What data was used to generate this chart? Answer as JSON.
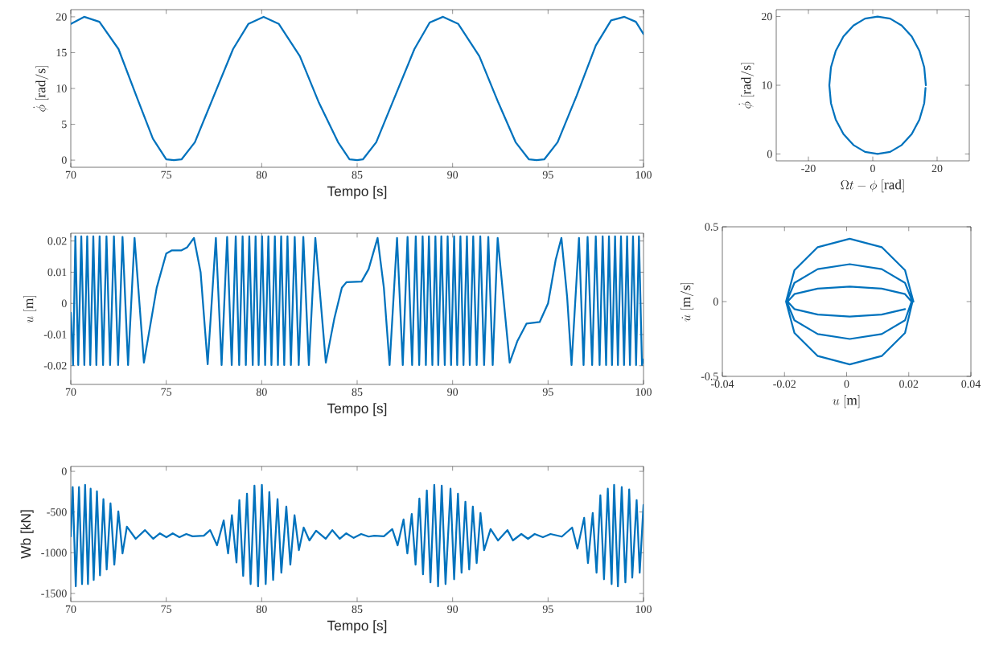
{
  "chart_data": [
    {
      "type": "line",
      "xlabel": "Tempo [s]",
      "ylabel": "\\dot{\\phi}\\ \\mathrm{[rad/s]}",
      "color": "#0072bd",
      "xlim": [
        70,
        100
      ],
      "ylim": [
        -1,
        21
      ],
      "xticks": [
        70,
        75,
        80,
        85,
        90,
        95,
        100
      ],
      "yticks": [
        0,
        5,
        10,
        15,
        20
      ],
      "x": [
        70,
        70.7,
        71.5,
        72.5,
        73.5,
        74.3,
        75,
        75.4,
        75.8,
        76.5,
        77.5,
        78.5,
        79.3,
        80.1,
        80.9,
        82,
        83,
        84,
        84.6,
        85,
        85.3,
        86,
        87,
        88,
        88.8,
        89.5,
        90.3,
        91.4,
        92.4,
        93.3,
        94,
        94.4,
        94.8,
        95.5,
        96.5,
        97.5,
        98.3,
        99,
        99.6,
        100
      ],
      "values": [
        19,
        20,
        19.3,
        15.5,
        8.5,
        3,
        0.1,
        0,
        0.1,
        2.5,
        9,
        15.5,
        19,
        20,
        19,
        14.5,
        8,
        2.5,
        0.1,
        0,
        0.1,
        2.5,
        9,
        15.5,
        19.2,
        20,
        19,
        14.5,
        8,
        2.5,
        0.1,
        0,
        0.1,
        2.5,
        9,
        16,
        19.5,
        20,
        19.3,
        17.6
      ]
    },
    {
      "type": "line",
      "xlabel": "\\Omega t-\\phi\\ \\mathrm{[rad]}",
      "ylabel": "\\dot{\\phi}\\ \\mathrm{[rad/s]}",
      "color": "#0072bd",
      "xlim": [
        -30,
        30
      ],
      "ylim": [
        -1,
        21
      ],
      "xticks": [
        -20,
        0,
        20
      ],
      "yticks": [
        0,
        10,
        20
      ],
      "x": [
        16.5,
        16,
        14.5,
        12.1,
        9,
        5.4,
        1.5,
        -2.4,
        -6,
        -9.1,
        -11.5,
        -13,
        -13.5,
        -13,
        -11.5,
        -9.1,
        -6,
        -2.4,
        1.5,
        5.4,
        9,
        12.1,
        14.5,
        16,
        16.4
      ],
      "values": [
        10,
        12.6,
        15,
        17.1,
        18.7,
        19.7,
        20,
        19.7,
        18.7,
        17.1,
        15,
        12.6,
        10,
        7.4,
        5,
        2.9,
        1.3,
        0.3,
        0,
        0.3,
        1.3,
        2.9,
        5,
        7.4,
        9.6
      ]
    },
    {
      "type": "line",
      "xlabel": "Tempo [s]",
      "ylabel": "u\\ \\mathrm{[m]}",
      "color": "#0072bd",
      "xlim": [
        70,
        100
      ],
      "ylim": [
        -0.026,
        0.0225
      ],
      "xticks": [
        70,
        75,
        80,
        85,
        90,
        95,
        100
      ],
      "yticks": [
        -0.02,
        -0.01,
        0,
        0.01,
        0.02
      ],
      "x": [
        70,
        70.12,
        70.24,
        70.39,
        70.55,
        70.71,
        70.86,
        71.02,
        71.18,
        71.34,
        71.51,
        71.69,
        71.87,
        72.06,
        72.26,
        72.48,
        72.71,
        73.0,
        73.34,
        73.83,
        74.5,
        75.0,
        75.3,
        75.8,
        76.1,
        76.45,
        76.8,
        77.17,
        77.6,
        77.9,
        78.19,
        78.43,
        78.64,
        78.82,
        79.0,
        79.17,
        79.35,
        79.53,
        79.68,
        79.84,
        80.02,
        80.18,
        80.35,
        80.51,
        80.69,
        80.85,
        81.02,
        81.18,
        81.35,
        81.53,
        81.73,
        81.94,
        82.18,
        82.47,
        82.81,
        83.36,
        83.8,
        84.2,
        84.44,
        85.23,
        85.6,
        86.07,
        86.4,
        86.7,
        87.09,
        87.39,
        87.64,
        87.88,
        88.07,
        88.25,
        88.43,
        88.6,
        88.76,
        88.94,
        89.1,
        89.25,
        89.41,
        89.59,
        89.74,
        89.92,
        90.08,
        90.24,
        90.41,
        90.57,
        90.75,
        90.9,
        91.08,
        91.26,
        91.45,
        91.65,
        91.87,
        92.1,
        92.36,
        92.99,
        93.4,
        93.87,
        94.56,
        95.0,
        95.4,
        95.7,
        96.0,
        96.23,
        96.62,
        96.86,
        97.07,
        97.31,
        97.5,
        97.7,
        97.86,
        98.04,
        98.19,
        98.35,
        98.51,
        98.66,
        98.82,
        98.98,
        99.14,
        99.29,
        99.45,
        99.61,
        99.76,
        99.92,
        100
      ],
      "values": [
        -0.003,
        -0.0198,
        0.0215,
        -0.0198,
        0.0215,
        -0.0198,
        0.0215,
        -0.0198,
        0.0215,
        -0.0198,
        0.0215,
        -0.0198,
        0.0215,
        -0.0198,
        0.0215,
        -0.0198,
        0.0213,
        -0.0198,
        0.021,
        -0.019,
        0.005,
        0.016,
        0.017,
        0.017,
        0.018,
        0.021,
        0.01,
        -0.0195,
        0.021,
        -0.0198,
        0.0213,
        -0.0198,
        0.0215,
        -0.0198,
        0.0215,
        -0.0198,
        0.0215,
        -0.0198,
        0.0215,
        -0.0198,
        0.0215,
        -0.0198,
        0.0215,
        -0.0198,
        0.0215,
        -0.0198,
        0.0215,
        -0.0198,
        0.0215,
        -0.0198,
        0.0213,
        -0.0198,
        0.0213,
        -0.0198,
        0.021,
        -0.019,
        -0.005,
        0.005,
        0.0068,
        0.007,
        0.011,
        0.021,
        0.005,
        -0.0198,
        0.021,
        -0.0198,
        0.0213,
        -0.0198,
        0.0215,
        -0.0198,
        0.0215,
        -0.0198,
        0.0215,
        -0.0198,
        0.0215,
        -0.0198,
        0.0215,
        -0.0198,
        0.0215,
        -0.0198,
        0.0215,
        -0.0198,
        0.0215,
        -0.0198,
        0.0215,
        -0.0198,
        0.0215,
        -0.0198,
        0.0215,
        -0.0198,
        0.0213,
        -0.0198,
        0.021,
        -0.019,
        -0.012,
        -0.0065,
        -0.006,
        0.0,
        0.014,
        0.021,
        0.002,
        -0.0198,
        0.021,
        -0.0198,
        0.0213,
        -0.0198,
        0.0215,
        -0.0198,
        0.0215,
        -0.0198,
        0.0215,
        -0.0198,
        0.0215,
        -0.0198,
        0.0215,
        -0.0198,
        0.0215,
        -0.0198,
        0.0215,
        -0.0198,
        0.0215,
        -0.0198,
        -0.018
      ]
    },
    {
      "type": "line",
      "xlabel": "u\\ \\mathrm{[m]}",
      "ylabel": "\\dot{u}\\ \\mathrm{[m/s]}",
      "color": "#0072bd",
      "xlim": [
        -0.04,
        0.04
      ],
      "ylim": [
        -0.5,
        0.5
      ],
      "xticks": [
        -0.04,
        -0.02,
        0,
        0.02,
        0.04
      ],
      "yticks": [
        -0.5,
        0,
        0.5
      ],
      "x": [
        0.0215,
        0.0188,
        0.0113,
        0.001,
        -0.0093,
        -0.0168,
        -0.0195,
        -0.0168,
        -0.0093,
        0.001,
        0.0113,
        0.0188,
        0.0212,
        0.0188,
        0.0113,
        0.001,
        -0.0093,
        -0.0168,
        -0.0193,
        -0.0168,
        -0.0093,
        0.001,
        0.0113,
        0.0188,
        0.0209,
        0.0188,
        0.0113,
        0.001,
        -0.0093,
        -0.0168,
        -0.019,
        -0.0168,
        -0.0093,
        0.001,
        0.0113,
        0.0188
      ],
      "values": [
        0,
        0.21,
        0.364,
        0.42,
        0.364,
        0.21,
        0,
        -0.21,
        -0.364,
        -0.42,
        -0.364,
        -0.21,
        0,
        0.125,
        0.217,
        0.25,
        0.217,
        0.125,
        0,
        -0.125,
        -0.217,
        -0.25,
        -0.217,
        -0.125,
        0,
        0.05,
        0.087,
        0.1,
        0.087,
        0.05,
        0,
        -0.05,
        -0.087,
        -0.1,
        -0.087,
        -0.05
      ]
    },
    {
      "type": "line",
      "xlabel": "Tempo [s]",
      "ylabel": "Wb [kN]",
      "color": "#0072bd",
      "xlim": [
        70,
        100
      ],
      "ylim": [
        -1600,
        60
      ],
      "xticks": [
        70,
        75,
        80,
        85,
        90,
        95,
        100
      ],
      "yticks": [
        -1500,
        -1000,
        -500,
        0
      ],
      "x": [
        70.0,
        70.1,
        70.26,
        70.43,
        70.59,
        70.75,
        70.9,
        71.04,
        71.2,
        71.37,
        71.53,
        71.71,
        71.88,
        72.08,
        72.28,
        72.49,
        72.71,
        72.94,
        73.4,
        73.89,
        74.32,
        74.67,
        75.01,
        75.34,
        75.69,
        76.05,
        76.38,
        76.97,
        77.3,
        77.66,
        78.01,
        78.24,
        78.44,
        78.68,
        78.83,
        79.03,
        79.23,
        79.42,
        79.62,
        79.81,
        80.01,
        80.21,
        80.4,
        80.6,
        80.83,
        81.03,
        81.29,
        81.5,
        81.72,
        81.95,
        82.2,
        82.5,
        82.85,
        83.35,
        83.7,
        84.09,
        84.43,
        84.82,
        85.21,
        85.6,
        85.9,
        86.4,
        86.84,
        87.12,
        87.43,
        87.63,
        87.86,
        88.06,
        88.26,
        88.45,
        88.65,
        88.84,
        89.04,
        89.24,
        89.43,
        89.63,
        89.89,
        90.08,
        90.28,
        90.47,
        90.67,
        90.87,
        91.06,
        91.26,
        91.46,
        91.65,
        91.99,
        92.38,
        92.87,
        93.16,
        93.6,
        93.95,
        94.3,
        94.73,
        95.13,
        95.72,
        96.26,
        96.54,
        96.89,
        97.09,
        97.34,
        97.54,
        97.74,
        97.93,
        98.13,
        98.33,
        98.46,
        98.66,
        98.86,
        99.05,
        99.25,
        99.41,
        99.64,
        99.8,
        100.0
      ],
      "values": [
        -798,
        -194,
        -1413,
        -194,
        -1385,
        -167,
        -1385,
        -214,
        -1334,
        -246,
        -1278,
        -341,
        -1207,
        -393,
        -1147,
        -492,
        -1008,
        -679,
        -829,
        -722,
        -829,
        -762,
        -810,
        -762,
        -810,
        -770,
        -798,
        -790,
        -722,
        -909,
        -603,
        -1008,
        -540,
        -1119,
        -353,
        -1286,
        -274,
        -1385,
        -175,
        -1413,
        -167,
        -1385,
        -254,
        -1334,
        -341,
        -1246,
        -433,
        -1147,
        -540,
        -968,
        -691,
        -849,
        -730,
        -829,
        -722,
        -829,
        -762,
        -818,
        -770,
        -802,
        -790,
        -798,
        -710,
        -909,
        -591,
        -1008,
        -524,
        -1147,
        -333,
        -1266,
        -234,
        -1365,
        -167,
        -1413,
        -175,
        -1385,
        -214,
        -1326,
        -274,
        -1246,
        -373,
        -1207,
        -433,
        -1127,
        -512,
        -968,
        -710,
        -849,
        -722,
        -849,
        -770,
        -829,
        -770,
        -810,
        -770,
        -802,
        -691,
        -949,
        -571,
        -1127,
        -512,
        -1246,
        -294,
        -1326,
        -214,
        -1385,
        -167,
        -1413,
        -194,
        -1365,
        -222,
        -1306,
        -353,
        -1246,
        -413
      ]
    }
  ]
}
